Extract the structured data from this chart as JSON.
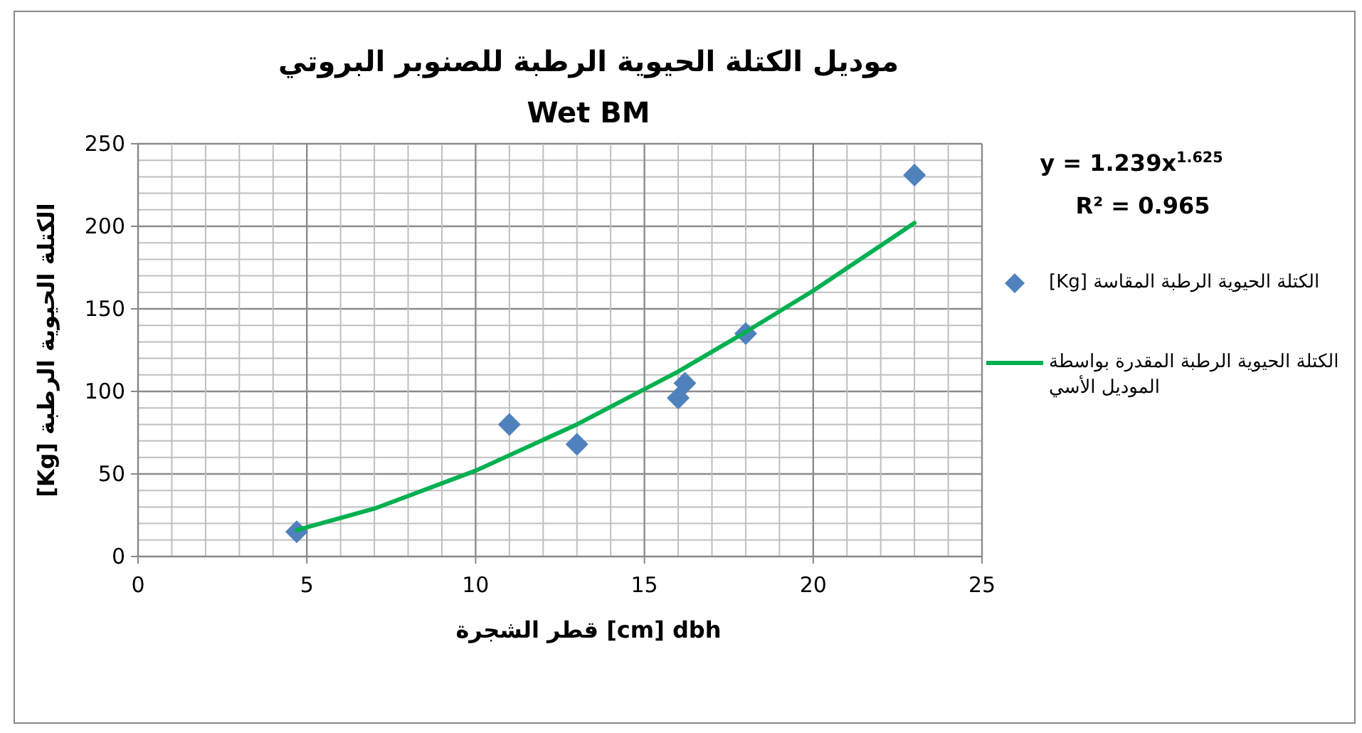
{
  "chart_data": {
    "type": "scatter",
    "title": "موديل الكتلة الحيوية الرطبة للصنوبر البروتي",
    "subtitle": "Wet BM",
    "xlabel": "قطر الشجرة [cm] dbh",
    "ylabel": "الكتلة الحيوية الرطبة [Kg]",
    "xlim": [
      0,
      25
    ],
    "xticks": [
      0,
      5,
      10,
      15,
      20,
      25
    ],
    "ylim": [
      0,
      250
    ],
    "yticks": [
      0,
      50,
      100,
      150,
      200,
      250
    ],
    "grid": true,
    "legend": "right",
    "annotations": [
      "y = 1.239x$^{1.625}$",
      "R² = 0.965"
    ],
    "series": [
      {
        "name": "الكتلة الحيوية الرطبة المقاسة [Kg]",
        "type": "scatter",
        "marker": "diamond",
        "color": "#4f81bd",
        "x": [
          4.7,
          11,
          13,
          16,
          16.2,
          18,
          23
        ],
        "values": [
          15,
          80,
          68,
          96,
          105,
          135,
          231
        ]
      },
      {
        "name": "الكتلة الحيوية الرطبة المقدرة بواسطة الموديل الأسي",
        "type": "line",
        "marker": "none",
        "color": "#00b050",
        "x": [
          4.7,
          7,
          10,
          13,
          16,
          18,
          20,
          23
        ],
        "values": [
          16,
          29,
          52,
          80,
          112,
          136,
          161,
          202
        ]
      }
    ]
  }
}
